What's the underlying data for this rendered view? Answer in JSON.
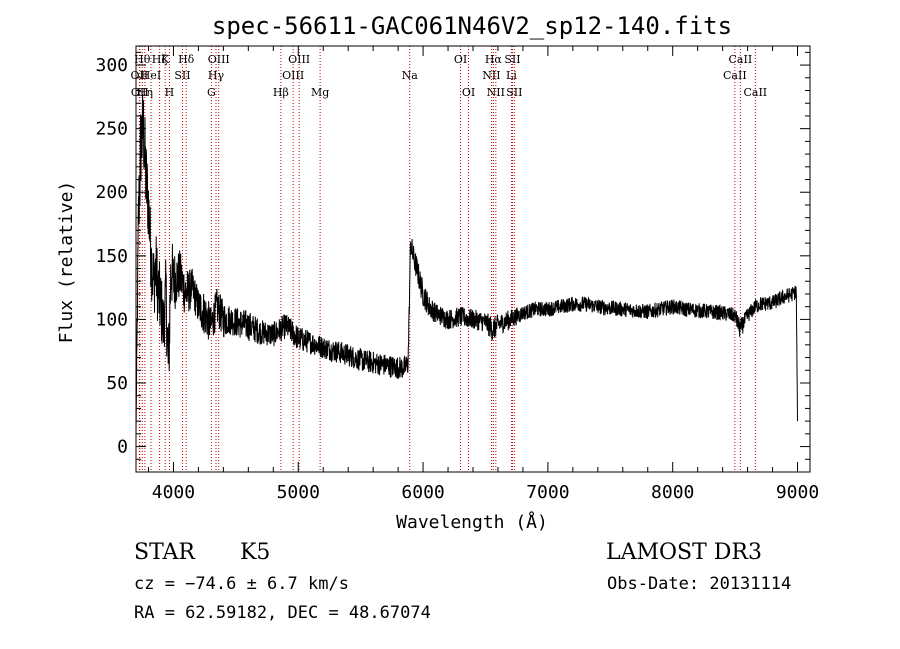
{
  "chart_data": {
    "type": "line",
    "title": "spec-56611-GAC061N46V2_sp12-140.fits",
    "xlabel": "Wavelength (Å)",
    "ylabel": "Flux (relative)",
    "xlim": [
      3700,
      9100
    ],
    "ylim": [
      -20,
      315
    ],
    "xticks": [
      4000,
      5000,
      6000,
      7000,
      8000,
      9000
    ],
    "yticks": [
      0,
      50,
      100,
      150,
      200,
      250,
      300
    ],
    "series": [
      {
        "name": "flux",
        "x": [
          3700,
          3720,
          3740,
          3760,
          3780,
          3800,
          3820,
          3840,
          3860,
          3880,
          3900,
          3920,
          3940,
          3960,
          3980,
          4000,
          4050,
          4100,
          4150,
          4200,
          4250,
          4300,
          4350,
          4400,
          4450,
          4500,
          4600,
          4700,
          4800,
          4900,
          5000,
          5100,
          5200,
          5300,
          5400,
          5500,
          5600,
          5700,
          5800,
          5850,
          5880,
          5900,
          5920,
          5950,
          6000,
          6050,
          6100,
          6200,
          6300,
          6400,
          6500,
          6560,
          6600,
          6700,
          6800,
          6900,
          7000,
          7100,
          7200,
          7300,
          7400,
          7500,
          7600,
          7700,
          7800,
          7900,
          8000,
          8100,
          8200,
          8300,
          8400,
          8500,
          8540,
          8600,
          8660,
          8700,
          8800,
          8900,
          8960,
          8990,
          9000
        ],
        "y": [
          10,
          180,
          240,
          250,
          210,
          190,
          150,
          130,
          140,
          120,
          110,
          95,
          120,
          60,
          140,
          130,
          135,
          120,
          125,
          110,
          105,
          95,
          110,
          100,
          100,
          98,
          95,
          90,
          88,
          95,
          85,
          82,
          78,
          75,
          72,
          68,
          66,
          64,
          62,
          62,
          65,
          160,
          150,
          140,
          120,
          110,
          105,
          100,
          102,
          100,
          98,
          92,
          96,
          100,
          105,
          108,
          108,
          110,
          112,
          112,
          110,
          109,
          108,
          107,
          106,
          108,
          110,
          108,
          107,
          106,
          105,
          103,
          92,
          103,
          110,
          112,
          113,
          118,
          120,
          122,
          20
        ],
        "noise": [
          0,
          35,
          40,
          35,
          35,
          30,
          30,
          30,
          30,
          30,
          30,
          25,
          30,
          35,
          30,
          25,
          20,
          20,
          15,
          15,
          18,
          15,
          15,
          15,
          12,
          12,
          12,
          10,
          10,
          10,
          10,
          9,
          9,
          9,
          9,
          9,
          9,
          9,
          9,
          9,
          9,
          10,
          10,
          10,
          10,
          9,
          8,
          8,
          8,
          8,
          8,
          10,
          8,
          8,
          6,
          6,
          6,
          6,
          6,
          6,
          6,
          6,
          6,
          6,
          6,
          6,
          6,
          6,
          6,
          6,
          6,
          6,
          8,
          6,
          6,
          6,
          6,
          6,
          6,
          6,
          0
        ]
      }
    ],
    "lines": [
      {
        "w": 3727,
        "label": "OII",
        "row": 1
      },
      {
        "w": 3730,
        "label": "OII",
        "row": 2
      },
      {
        "w": 3750,
        "label": "Hθ",
        "row": 0
      },
      {
        "w": 3771,
        "label": "Hη",
        "row": 2
      },
      {
        "w": 3820,
        "label": "HeI",
        "row": 1
      },
      {
        "w": 3889,
        "label": "Hζ",
        "row": 0
      },
      {
        "w": 3934,
        "label": "K",
        "row": 0
      },
      {
        "w": 3968,
        "label": "H",
        "row": 2
      },
      {
        "w": 4072,
        "label": "SII",
        "row": 1
      },
      {
        "w": 4102,
        "label": "Hδ",
        "row": 0
      },
      {
        "w": 4304,
        "label": "G",
        "row": 2
      },
      {
        "w": 4341,
        "label": "Hγ",
        "row": 1
      },
      {
        "w": 4363,
        "label": "OIII",
        "row": 0
      },
      {
        "w": 4861,
        "label": "Hβ",
        "row": 2
      },
      {
        "w": 4959,
        "label": "OIII",
        "row": 1
      },
      {
        "w": 5007,
        "label": "OIII",
        "row": 0
      },
      {
        "w": 5175,
        "label": "Mg",
        "row": 2
      },
      {
        "w": 5893,
        "label": "Na",
        "row": 1
      },
      {
        "w": 6300,
        "label": "OI",
        "row": 0
      },
      {
        "w": 6364,
        "label": "OI",
        "row": 2
      },
      {
        "w": 6548,
        "label": "NII",
        "row": 1
      },
      {
        "w": 6563,
        "label": "Hα",
        "row": 0
      },
      {
        "w": 6583,
        "label": "NII",
        "row": 2
      },
      {
        "w": 6708,
        "label": "Li",
        "row": 1
      },
      {
        "w": 6716,
        "label": "SII",
        "row": 0
      },
      {
        "w": 6731,
        "label": "SII",
        "row": 2
      },
      {
        "w": 8498,
        "label": "CaII",
        "row": 1
      },
      {
        "w": 8542,
        "label": "CaII",
        "row": 0
      },
      {
        "w": 8662,
        "label": "CaII",
        "row": 2
      }
    ]
  },
  "footer": {
    "object_class": "STAR",
    "subclass": "K5",
    "redshift": "cz = −74.6 ± 6.7 km/s",
    "coords": "RA =  62.59182, DEC =  48.67074",
    "survey": "LAMOST DR3",
    "obs_date": "Obs-Date: 20131114"
  }
}
